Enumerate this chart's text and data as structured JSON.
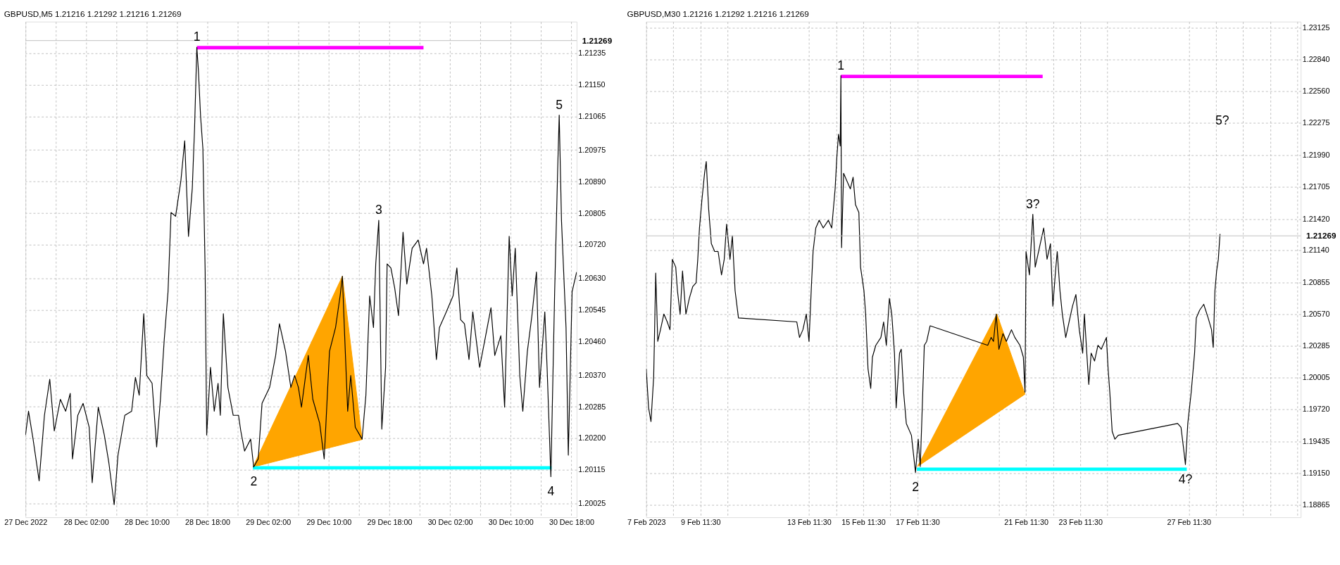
{
  "chart_data": [
    {
      "type": "line",
      "title": "GBPUSD,M5  1.21216 1.21292 1.21216 1.21269",
      "grid": true,
      "xlim": [
        "2022-12-27T18:00",
        "2022-12-30T18:42"
      ],
      "xticks": [
        {
          "value": "2022-12-27T18:00",
          "label": "27 Dec 2022"
        },
        {
          "value": "2022-12-27T22:00",
          "label": null
        },
        {
          "value": "2022-12-28T02:00",
          "label": "28 Dec 02:00"
        },
        {
          "value": "2022-12-28T06:00",
          "label": null
        },
        {
          "value": "2022-12-28T10:00",
          "label": "28 Dec 10:00"
        },
        {
          "value": "2022-12-28T14:00",
          "label": null
        },
        {
          "value": "2022-12-28T18:00",
          "label": "28 Dec 18:00"
        },
        {
          "value": "2022-12-28T22:00",
          "label": null
        },
        {
          "value": "2022-12-29T02:00",
          "label": "29 Dec 02:00"
        },
        {
          "value": "2022-12-29T06:00",
          "label": null
        },
        {
          "value": "2022-12-29T10:00",
          "label": "29 Dec 10:00"
        },
        {
          "value": "2022-12-29T14:00",
          "label": null
        },
        {
          "value": "2022-12-29T18:00",
          "label": "29 Dec 18:00"
        },
        {
          "value": "2022-12-29T22:00",
          "label": null
        },
        {
          "value": "2022-12-30T02:00",
          "label": "30 Dec 02:00"
        },
        {
          "value": "2022-12-30T06:00",
          "label": null
        },
        {
          "value": "2022-12-30T10:00",
          "label": "30 Dec 10:00"
        },
        {
          "value": "2022-12-30T14:00",
          "label": null
        },
        {
          "value": "2022-12-30T18:00",
          "label": "30 Dec 18:00"
        }
      ],
      "ylim": [
        1.19988,
        1.2132
      ],
      "yticks": [
        1.20025,
        1.20115,
        {
          "value": 1.202,
          "label": "1.20200"
        },
        1.20285,
        {
          "value": 1.2037,
          "label": "1.20370"
        },
        {
          "value": 1.2046,
          "label": "1.20460"
        },
        1.20545,
        {
          "value": 1.2063,
          "label": "1.20630"
        },
        {
          "value": 1.2072,
          "label": "1.20720"
        },
        1.20805,
        {
          "value": 1.2089,
          "label": "1.20890"
        },
        1.20975,
        1.21065,
        {
          "value": 1.2115,
          "label": "1.21150"
        },
        1.21235
      ],
      "ref_lines": [
        {
          "axis": "y",
          "value": 1.21269,
          "label": "1.21269",
          "color": "#c0c0c0"
        }
      ],
      "series": [
        {
          "type": "area",
          "color": "#ffa500",
          "x": [
            "2022-12-29T00:00",
            "2022-12-29T11:48",
            "2022-12-29T14:24",
            "2022-12-29T00:00"
          ],
          "values": [
            1.20123,
            1.20636,
            1.20197,
            1.20123
          ]
        },
        {
          "type": "line",
          "color": "#00ffff",
          "x": [
            "2022-12-29T00:00",
            "2022-12-30T15:24"
          ],
          "values": [
            1.20121,
            1.20121
          ]
        },
        {
          "type": "line",
          "color": "#ff00ff",
          "x": [
            "2022-12-28T16:36",
            "2022-12-29T22:30"
          ],
          "values": [
            1.2125,
            1.2125
          ]
        },
        {
          "type": "line",
          "color": "#000000",
          "x": [
            "2022-12-27T18:00",
            "2022-12-27T18:24",
            "2022-12-27T19:00",
            "2022-12-27T19:48",
            "2022-12-27T20:30",
            "2022-12-27T21:12",
            "2022-12-27T21:48",
            "2022-12-27T22:36",
            "2022-12-27T23:18",
            "2022-12-27T23:54",
            "2022-12-28T00:12",
            "2022-12-28T00:54",
            "2022-12-28T01:36",
            "2022-12-28T02:24",
            "2022-12-28T02:48",
            "2022-12-28T03:36",
            "2022-12-28T04:24",
            "2022-12-28T05:00",
            "2022-12-28T05:42",
            "2022-12-28T06:12",
            "2022-12-28T07:06",
            "2022-12-28T08:00",
            "2022-12-28T08:30",
            "2022-12-28T09:00",
            "2022-12-28T09:36",
            "2022-12-28T10:00",
            "2022-12-28T10:42",
            "2022-12-28T11:18",
            "2022-12-28T11:48",
            "2022-12-28T12:18",
            "2022-12-28T12:48",
            "2022-12-28T13:12",
            "2022-12-28T13:48",
            "2022-12-28T14:30",
            "2022-12-28T15:00",
            "2022-12-28T15:30",
            "2022-12-28T16:00",
            "2022-12-28T16:18",
            "2022-12-28T16:36",
            "2022-12-28T16:48",
            "2022-12-28T17:06",
            "2022-12-28T17:24",
            "2022-12-28T17:42",
            "2022-12-28T17:54",
            "2022-12-28T18:24",
            "2022-12-28T18:54",
            "2022-12-28T19:24",
            "2022-12-28T19:42",
            "2022-12-28T20:06",
            "2022-12-28T20:42",
            "2022-12-28T21:24",
            "2022-12-28T22:06",
            "2022-12-28T22:24",
            "2022-12-28T22:54",
            "2022-12-28T23:42",
            "2022-12-29T00:06",
            "2022-12-29T00:42",
            "2022-12-29T01:12",
            "2022-12-29T02:12",
            "2022-12-29T03:00",
            "2022-12-29T03:30",
            "2022-12-29T04:18",
            "2022-12-29T05:00",
            "2022-12-29T05:30",
            "2022-12-29T06:00",
            "2022-12-29T06:24",
            "2022-12-29T07:18",
            "2022-12-29T07:54",
            "2022-12-29T08:48",
            "2022-12-29T09:24",
            "2022-12-29T10:06",
            "2022-12-29T10:54",
            "2022-12-29T11:30",
            "2022-12-29T11:48",
            "2022-12-29T12:06",
            "2022-12-29T12:30",
            "2022-12-29T12:54",
            "2022-12-29T13:30",
            "2022-12-29T14:24",
            "2022-12-29T14:54",
            "2022-12-29T15:24",
            "2022-12-29T15:54",
            "2022-12-29T16:12",
            "2022-12-29T16:36",
            "2022-12-29T17:00",
            "2022-12-29T17:30",
            "2022-12-29T17:42",
            "2022-12-29T18:12",
            "2022-12-29T18:42",
            "2022-12-29T19:12",
            "2022-12-29T19:48",
            "2022-12-29T20:18",
            "2022-12-29T21:00",
            "2022-12-29T21:48",
            "2022-12-29T22:30",
            "2022-12-29T22:54",
            "2022-12-29T23:36",
            "2022-12-30T00:12",
            "2022-12-30T00:36",
            "2022-12-30T01:18",
            "2022-12-30T02:24",
            "2022-12-30T02:54",
            "2022-12-30T03:24",
            "2022-12-30T03:54",
            "2022-12-30T04:30",
            "2022-12-30T05:00",
            "2022-12-30T05:54",
            "2022-12-30T06:42",
            "2022-12-30T07:24",
            "2022-12-30T07:54",
            "2022-12-30T08:42",
            "2022-12-30T09:12",
            "2022-12-30T09:48",
            "2022-12-30T10:12",
            "2022-12-30T10:36",
            "2022-12-30T11:12",
            "2022-12-30T11:36",
            "2022-12-30T12:12",
            "2022-12-30T12:48",
            "2022-12-30T13:24",
            "2022-12-30T13:48",
            "2022-12-30T14:30",
            "2022-12-30T14:48",
            "2022-12-30T15:18",
            "2022-12-30T15:48",
            "2022-12-30T16:12",
            "2022-12-30T16:24",
            "2022-12-30T16:42",
            "2022-12-30T17:18",
            "2022-12-30T17:36",
            "2022-12-30T18:06",
            "2022-12-30T18:42"
          ],
          "values": [
            1.20209,
            1.20273,
            1.20198,
            1.20086,
            1.20262,
            1.20359,
            1.2022,
            1.20305,
            1.20273,
            1.20321,
            1.20145,
            1.20262,
            1.20294,
            1.2023,
            1.20081,
            1.20284,
            1.20209,
            1.20134,
            1.20022,
            1.20155,
            1.20262,
            1.20273,
            1.20364,
            1.20316,
            1.20535,
            1.20369,
            1.20348,
            1.20177,
            1.20305,
            1.20465,
            1.20594,
            1.20807,
            1.20797,
            1.20893,
            1.21,
            1.20743,
            1.20872,
            1.21032,
            1.21251,
            1.21192,
            1.21064,
            1.20979,
            1.20647,
            1.20209,
            1.20391,
            1.20273,
            1.20348,
            1.20262,
            1.20535,
            1.20337,
            1.20262,
            1.20262,
            1.2022,
            1.20166,
            1.20198,
            1.20123,
            1.20145,
            1.20294,
            1.20337,
            1.20423,
            1.20508,
            1.20434,
            1.20337,
            1.20369,
            1.20337,
            1.20284,
            1.20423,
            1.20305,
            1.20241,
            1.20145,
            1.20434,
            1.20498,
            1.20583,
            1.20636,
            1.20476,
            1.20273,
            1.20369,
            1.2023,
            1.20198,
            1.20316,
            1.20583,
            1.20498,
            1.20669,
            1.20786,
            1.20225,
            1.20391,
            1.20669,
            1.20658,
            1.20604,
            1.2053,
            1.20754,
            1.20615,
            1.20711,
            1.20733,
            1.20669,
            1.20711,
            1.20583,
            1.20412,
            1.20498,
            1.2053,
            1.20583,
            1.20658,
            1.20519,
            1.20508,
            1.20412,
            1.2054,
            1.20391,
            1.20476,
            1.20551,
            1.20423,
            1.20476,
            1.20284,
            1.20743,
            1.20583,
            1.20711,
            1.20369,
            1.20273,
            1.20434,
            1.2053,
            1.20647,
            1.20337,
            1.2054,
            1.20391,
            1.20097,
            1.20594,
            1.20925,
            1.21069,
            1.20786,
            1.20498,
            1.20155,
            1.20594,
            1.20647
          ]
        }
      ],
      "annotations": [
        {
          "text": "1",
          "x": "2022-12-28T16:36",
          "y": 1.21251
        },
        {
          "text": "2",
          "x": "2022-12-29T00:06",
          "y": 1.20123
        },
        {
          "text": "3",
          "x": "2022-12-29T16:36",
          "y": 1.20786
        },
        {
          "text": "4",
          "x": "2022-12-30T15:18",
          "y": 1.20097
        },
        {
          "text": "5",
          "x": "2022-12-30T16:24",
          "y": 1.21069
        }
      ]
    },
    {
      "type": "line",
      "title": "GBPUSD,M30  1.21216 1.21292 1.21216 1.21269",
      "grid": true,
      "xlim": [
        "2023-02-07T11:30",
        "2023-03-03T14:30"
      ],
      "xticks": [
        {
          "value": "2023-02-07T11:30",
          "label": "7 Feb 2023"
        },
        {
          "value": "2023-02-08T11:30",
          "label": null
        },
        {
          "value": "2023-02-09T11:30",
          "label": "9 Feb 11:30"
        },
        {
          "value": "2023-02-10T11:30",
          "label": null
        },
        {
          "value": "2023-02-13T11:30",
          "label": "13 Feb 11:30"
        },
        {
          "value": "2023-02-14T11:30",
          "label": null
        },
        {
          "value": "2023-02-15T11:30",
          "label": "15 Feb 11:30"
        },
        {
          "value": "2023-02-16T11:30",
          "label": null
        },
        {
          "value": "2023-02-17T11:30",
          "label": "17 Feb 11:30"
        },
        {
          "value": "2023-02-20T11:30",
          "label": null
        },
        {
          "value": "2023-02-21T11:30",
          "label": "21 Feb 11:30"
        },
        {
          "value": "2023-02-22T11:30",
          "label": null
        },
        {
          "value": "2023-02-23T11:30",
          "label": "23 Feb 11:30"
        },
        {
          "value": "2023-02-24T11:30",
          "label": null
        },
        {
          "value": "2023-02-27T11:30",
          "label": "27 Feb 11:30"
        },
        {
          "value": "2023-02-28T11:30",
          "label": null
        },
        {
          "value": "2023-03-01T11:30",
          "label": null
        },
        {
          "value": "2023-03-02T11:30",
          "label": null
        },
        {
          "value": "2023-03-03T11:30",
          "label": null
        }
      ],
      "ylim": [
        1.18757,
        1.23181
      ],
      "yticks": [
        1.18865,
        {
          "value": 1.1915,
          "label": "1.19150"
        },
        1.19435,
        {
          "value": 1.1972,
          "label": "1.19720"
        },
        1.20005,
        1.20285,
        {
          "value": 1.2057,
          "label": "1.20570"
        },
        1.20855,
        {
          "value": 1.2114,
          "label": "1.21140"
        },
        {
          "value": 1.2142,
          "label": "1.21420"
        },
        1.21705,
        {
          "value": 1.2199,
          "label": "1.21990"
        },
        1.22275,
        {
          "value": 1.2256,
          "label": "1.22560"
        },
        {
          "value": 1.2284,
          "label": "1.22840"
        },
        1.23125
      ],
      "ref_lines": [
        {
          "axis": "y",
          "value": 1.21269,
          "label": "1.21269",
          "color": "#c0c0c0"
        }
      ],
      "series": [
        {
          "type": "area",
          "color": "#ffa500",
          "x": [
            "2023-02-17T11:30",
            "2023-02-20T09:42",
            "2023-02-21T10:36",
            "2023-02-17T11:30"
          ],
          "values": [
            1.1921,
            1.20571,
            1.19856,
            1.1921
          ]
        },
        {
          "type": "line",
          "color": "#00ffff",
          "x": [
            "2023-02-17T10:54",
            "2023-02-27T09:42"
          ],
          "values": [
            1.19186,
            1.19186
          ]
        },
        {
          "type": "line",
          "color": "#ff00ff",
          "x": [
            "2023-02-14T15:42",
            "2023-02-22T02:12"
          ],
          "values": [
            1.22692,
            1.22692
          ]
        },
        {
          "type": "line",
          "color": "#000000",
          "x": [
            "2023-02-07T11:30",
            "2023-02-07T13:36",
            "2023-02-07T15:42",
            "2023-02-07T18:06",
            "2023-02-07T19:54",
            "2023-02-07T21:42",
            "2023-02-08T00:06",
            "2023-02-08T03:06",
            "2023-02-08T06:06",
            "2023-02-08T08:30",
            "2023-02-08T10:36",
            "2023-02-08T13:36",
            "2023-02-08T15:06",
            "2023-02-08T17:30",
            "2023-02-08T19:36",
            "2023-02-08T22:36",
            "2023-02-09T01:36",
            "2023-02-09T04:36",
            "2023-02-09T07:36",
            "2023-02-09T09:06",
            "2023-02-09T10:36",
            "2023-02-09T12:42",
            "2023-02-09T15:06",
            "2023-02-09T16:36",
            "2023-02-09T18:42",
            "2023-02-09T21:06",
            "2023-02-10T00:06",
            "2023-02-10T03:06",
            "2023-02-10T06:06",
            "2023-02-10T08:30",
            "2023-02-10T10:36",
            "2023-02-10T13:36",
            "2023-02-10T15:42",
            "2023-02-10T18:06",
            "2023-02-10T21:06",
            "2023-02-13T00:42",
            "2023-02-13T03:06",
            "2023-02-13T06:06",
            "2023-02-13T09:06",
            "2023-02-13T11:30",
            "2023-02-13T13:36",
            "2023-02-13T15:06",
            "2023-02-13T17:30",
            "2023-02-13T20:30",
            "2023-02-14T00:06",
            "2023-02-14T04:36",
            "2023-02-14T07:36",
            "2023-02-14T10:36",
            "2023-02-14T12:06",
            "2023-02-14T13:36",
            "2023-02-14T15:06",
            "2023-02-14T15:42",
            "2023-02-14T16:18",
            "2023-02-14T18:06",
            "2023-02-14T21:06",
            "2023-02-15T00:06",
            "2023-02-15T02:30",
            "2023-02-15T04:36",
            "2023-02-15T07:36",
            "2023-02-15T09:06",
            "2023-02-15T12:06",
            "2023-02-15T13:36",
            "2023-02-15T15:42",
            "2023-02-15T18:06",
            "2023-02-15T19:36",
            "2023-02-15T22:36",
            "2023-02-16T03:06",
            "2023-02-16T05:30",
            "2023-02-16T07:54",
            "2023-02-16T10:36",
            "2023-02-16T12:42",
            "2023-02-16T15:06",
            "2023-02-16T16:36",
            "2023-02-16T19:36",
            "2023-02-16T21:06",
            "2023-02-16T23:12",
            "2023-02-17T01:36",
            "2023-02-17T06:06",
            "2023-02-17T09:42",
            "2023-02-17T12:06",
            "2023-02-17T13:54",
            "2023-02-17T15:06",
            "2023-02-17T17:30",
            "2023-02-17T19:36",
            "2023-02-17T22:36",
            "2023-02-20T01:36",
            "2023-02-20T04:36",
            "2023-02-20T06:42",
            "2023-02-20T09:06",
            "2023-02-20T11:30",
            "2023-02-20T15:06",
            "2023-02-20T18:06",
            "2023-02-20T22:36",
            "2023-02-21T01:36",
            "2023-02-21T06:06",
            "2023-02-21T09:06",
            "2023-02-21T10:36",
            "2023-02-21T11:30",
            "2023-02-21T14:30",
            "2023-02-21T17:30",
            "2023-02-21T19:36",
            "2023-02-21T22:36",
            "2023-02-22T03:06",
            "2023-02-22T06:06",
            "2023-02-22T09:06",
            "2023-02-22T11:12",
            "2023-02-22T13:36",
            "2023-02-22T15:06",
            "2023-02-22T17:30",
            "2023-02-22T19:36",
            "2023-02-22T22:36",
            "2023-02-23T01:36",
            "2023-02-23T04:36",
            "2023-02-23T07:36",
            "2023-02-23T10:36",
            "2023-02-23T13:36",
            "2023-02-23T15:06",
            "2023-02-23T18:06",
            "2023-02-23T19:00",
            "2023-02-23T21:06",
            "2023-02-24T00:06",
            "2023-02-24T03:06",
            "2023-02-24T06:06",
            "2023-02-24T10:36",
            "2023-02-24T12:06",
            "2023-02-24T13:36",
            "2023-02-24T15:42",
            "2023-02-24T18:06",
            "2023-02-24T21:06",
            "2023-02-27T01:36",
            "2023-02-27T04:36",
            "2023-02-27T06:42",
            "2023-02-27T08:30",
            "2023-02-27T10:36",
            "2023-02-27T13:36",
            "2023-02-27T16:36",
            "2023-02-27T18:06",
            "2023-02-27T21:06",
            "2023-02-28T00:42",
            "2023-02-28T04:36",
            "2023-02-28T07:36",
            "2023-02-28T09:06",
            "2023-02-28T10:36",
            "2023-02-28T12:06",
            "2023-02-28T13:36",
            "2023-02-28T15:06"
          ],
          "values": [
            1.20082,
            1.19734,
            1.19611,
            1.20013,
            1.20937,
            1.20327,
            1.20431,
            1.20571,
            1.20501,
            1.20431,
            1.21059,
            1.2099,
            1.2078,
            1.20571,
            1.20955,
            1.20571,
            1.20711,
            1.20815,
            1.2085,
            1.21059,
            1.21339,
            1.21583,
            1.21827,
            1.21932,
            1.21513,
            1.21199,
            1.21129,
            1.21129,
            1.2092,
            1.21059,
            1.21373,
            1.21059,
            1.21269,
            1.2078,
            1.20536,
            1.20501,
            1.20362,
            1.20431,
            1.20571,
            1.20327,
            1.20815,
            1.21129,
            1.21339,
            1.21408,
            1.21339,
            1.21408,
            1.21339,
            1.21688,
            1.21967,
            1.22176,
            1.22071,
            1.22699,
            1.21164,
            1.21827,
            1.21757,
            1.21688,
            1.21792,
            1.21548,
            1.21478,
            1.2099,
            1.2078,
            1.20571,
            1.20082,
            1.19908,
            1.20187,
            1.20292,
            1.20362,
            1.20501,
            1.20292,
            1.20711,
            1.20571,
            1.20222,
            1.19734,
            1.20222,
            1.20257,
            1.19873,
            1.19594,
            1.19489,
            1.19158,
            1.19454,
            1.1921,
            1.19559,
            1.20292,
            1.20327,
            1.20466,
            1.20292,
            1.20362,
            1.20327,
            1.20571,
            1.20257,
            1.20396,
            1.20327,
            1.20431,
            1.20362,
            1.20292,
            1.20187,
            1.19873,
            1.21129,
            1.2092,
            1.21461,
            1.2099,
            1.21129,
            1.21339,
            1.2106,
            1.21199,
            1.20641,
            1.20955,
            1.21129,
            1.2078,
            1.20571,
            1.20362,
            1.20501,
            1.20641,
            1.20745,
            1.20431,
            1.20222,
            1.20571,
            1.20082,
            1.19943,
            1.20222,
            1.20152,
            1.20292,
            1.20257,
            1.20362,
            1.20082,
            1.19873,
            1.19524,
            1.19454,
            1.19489,
            1.19594,
            1.19559,
            1.19385,
            1.19228,
            1.19594,
            1.19873,
            1.20222,
            1.20536,
            1.20606,
            1.20658,
            1.20536,
            1.20431,
            1.20274,
            1.2078,
            1.20955,
            1.21059,
            1.21286
          ]
        }
      ],
      "annotations": [
        {
          "text": "1",
          "x": "2023-02-14T15:42",
          "y": 1.22699
        },
        {
          "text": "2",
          "x": "2023-02-17T09:42",
          "y": 1.19158
        },
        {
          "text": "3?",
          "x": "2023-02-21T17:30",
          "y": 1.21461
        },
        {
          "text": "4?",
          "x": "2023-02-27T08:30",
          "y": 1.19228
        },
        "5?"
      ]
    }
  ]
}
